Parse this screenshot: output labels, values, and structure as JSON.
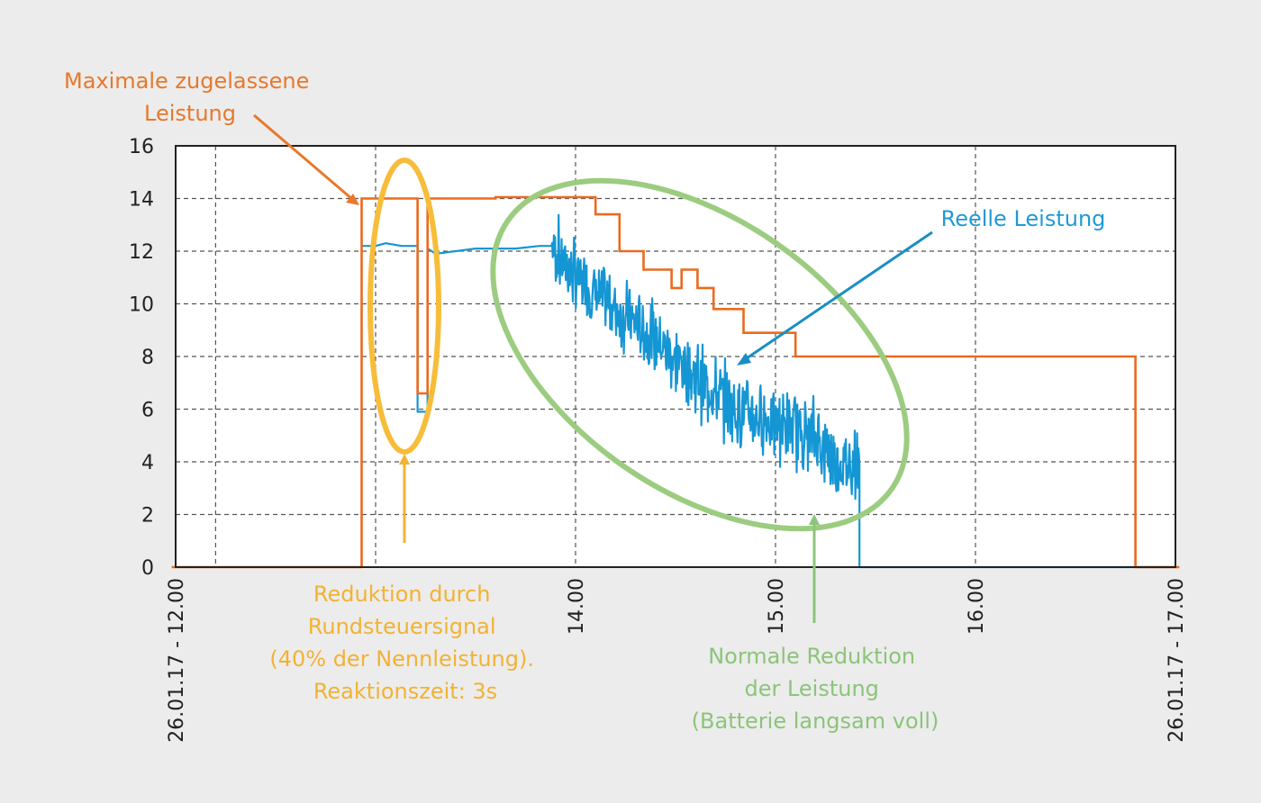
{
  "colors": {
    "max_power": "#ea6a1f",
    "real_power": "#1596d4",
    "reduction_highlight": "#f7bd3a",
    "normal_highlight": "#9ccc80",
    "grid": "#555555",
    "background": "#ececec",
    "plot_background": "#ffffff"
  },
  "chart_data": {
    "type": "line",
    "x_unit": "hours",
    "xlim": [
      12.0,
      17.0
    ],
    "ylim": [
      0,
      16
    ],
    "y_ticks": [
      0,
      2,
      4,
      6,
      8,
      10,
      12,
      14,
      16
    ],
    "x_ticks": [
      {
        "value": 12.0,
        "label": "26.01.17 - 12.00"
      },
      {
        "value": 14.0,
        "label": "14.00"
      },
      {
        "value": 15.0,
        "label": "15.00"
      },
      {
        "value": 16.0,
        "label": "16.00"
      },
      {
        "value": 17.0,
        "label": "26.01.17 - 17.00"
      }
    ],
    "grid": true,
    "series": [
      {
        "key": "max_power",
        "points": [
          [
            11.98,
            0
          ],
          [
            12.93,
            0
          ],
          [
            12.93,
            14
          ],
          [
            13.21,
            14
          ],
          [
            13.21,
            6.6
          ],
          [
            13.26,
            6.6
          ],
          [
            13.26,
            14
          ],
          [
            13.6,
            14
          ],
          [
            13.6,
            14.05
          ],
          [
            14.1,
            14.05
          ],
          [
            14.1,
            13.4
          ],
          [
            14.22,
            13.4
          ],
          [
            14.22,
            12
          ],
          [
            14.34,
            12
          ],
          [
            14.34,
            11.3
          ],
          [
            14.48,
            11.3
          ],
          [
            14.48,
            10.6
          ],
          [
            14.53,
            10.6
          ],
          [
            14.53,
            11.3
          ],
          [
            14.61,
            11.3
          ],
          [
            14.61,
            10.6
          ],
          [
            14.69,
            10.6
          ],
          [
            14.69,
            9.8
          ],
          [
            14.84,
            9.8
          ],
          [
            14.84,
            8.9
          ],
          [
            15.1,
            8.9
          ],
          [
            15.1,
            8.0
          ],
          [
            16.8,
            8.0
          ],
          [
            16.8,
            0
          ],
          [
            17.02,
            0
          ]
        ]
      },
      {
        "key": "real_power",
        "noisy_segment": {
          "x_start": 13.88,
          "x_end": 15.42
        },
        "points": [
          [
            12.93,
            12.2
          ],
          [
            13.0,
            12.2
          ],
          [
            13.05,
            12.3
          ],
          [
            13.13,
            12.2
          ],
          [
            13.21,
            12.2
          ],
          [
            13.21,
            5.9
          ],
          [
            13.26,
            5.9
          ],
          [
            13.26,
            12.1
          ],
          [
            13.3,
            11.9
          ],
          [
            13.5,
            12.1
          ],
          [
            13.7,
            12.1
          ],
          [
            13.82,
            12.2
          ],
          [
            13.88,
            12.2
          ],
          [
            14.0,
            11.0
          ],
          [
            14.2,
            9.8
          ],
          [
            14.4,
            8.6
          ],
          [
            14.6,
            7.2
          ],
          [
            14.8,
            6.0
          ],
          [
            15.0,
            5.5
          ],
          [
            15.2,
            5.0
          ],
          [
            15.3,
            4.0
          ],
          [
            15.42,
            3.9
          ],
          [
            15.42,
            0
          ],
          [
            17.0,
            0
          ]
        ]
      }
    ],
    "annotations": [
      {
        "key": "max_power_label",
        "lines": [
          "Maximale zugelassene",
          "Leistung"
        ],
        "color": "orange"
      },
      {
        "key": "real_power_label",
        "lines": [
          "Reelle Leistung"
        ],
        "color": "blue"
      },
      {
        "key": "reduction_label",
        "lines": [
          "Reduktion durch",
          "Rundsteuersignal",
          "(40% der Nennleistung).",
          "Reaktionszeit: 3s"
        ],
        "color": "yellow"
      },
      {
        "key": "normal_label",
        "lines": [
          "Normale Reduktion",
          "der Leistung",
          "(Batterie langsam voll)"
        ],
        "color": "green"
      }
    ]
  }
}
